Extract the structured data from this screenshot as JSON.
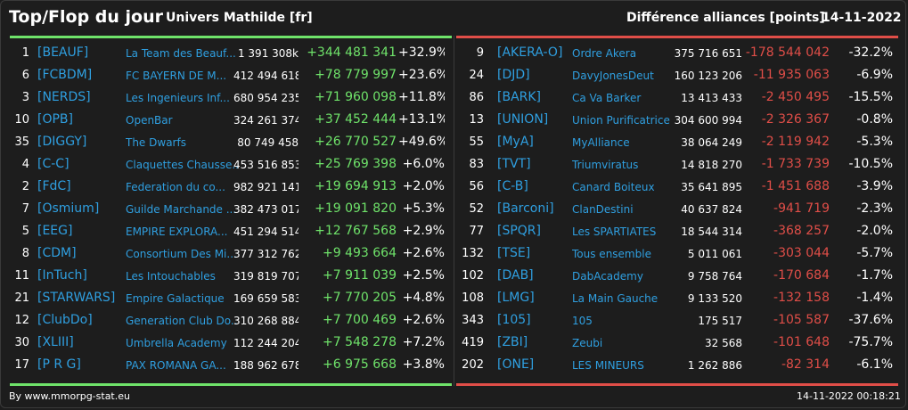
{
  "header": {
    "title": "Top/Flop du jour",
    "universe": "Univers Mathilde [fr]",
    "metric": "Différence alliances [points]",
    "date": "14-11-2022"
  },
  "colors": {
    "background": "#1d1d1d",
    "link": "#2f9fe0",
    "gain": "#6fe36a",
    "loss": "#e04e48"
  },
  "top": [
    {
      "rank": "1",
      "tag": "[BEAUF]",
      "name": "La Team des Beauf...",
      "points": "1 391 308k",
      "diff": "+344 481 341",
      "pct": "+32.9%"
    },
    {
      "rank": "6",
      "tag": "[FCBDM]",
      "name": "FC BAYERN DE M...",
      "points": "412 494 618",
      "diff": "+78 779 997",
      "pct": "+23.6%"
    },
    {
      "rank": "3",
      "tag": "[NERDS]",
      "name": "Les Ingenieurs Inf...",
      "points": "680 954 235",
      "diff": "+71 960 098",
      "pct": "+11.8%"
    },
    {
      "rank": "10",
      "tag": "[OPB]",
      "name": "OpenBar",
      "points": "324 261 374",
      "diff": "+37 452 444",
      "pct": "+13.1%"
    },
    {
      "rank": "35",
      "tag": "[DIGGY]",
      "name": "The Dwarfs",
      "points": "80 749 458",
      "diff": "+26 770 527",
      "pct": "+49.6%"
    },
    {
      "rank": "4",
      "tag": "[C-C]",
      "name": "Claquettes Chausse...",
      "points": "453 516 853",
      "diff": "+25 769 398",
      "pct": "+6.0%"
    },
    {
      "rank": "2",
      "tag": "[FdC]",
      "name": "Federation du co...",
      "points": "982 921 141",
      "diff": "+19 694 913",
      "pct": "+2.0%"
    },
    {
      "rank": "7",
      "tag": "[Osmium]",
      "name": "Guilde Marchande ...",
      "points": "382 473 017",
      "diff": "+19 091 820",
      "pct": "+5.3%"
    },
    {
      "rank": "5",
      "tag": "[EEG]",
      "name": "EMPIRE EXPLORA...",
      "points": "451 294 514",
      "diff": "+12 767 568",
      "pct": "+2.9%"
    },
    {
      "rank": "8",
      "tag": "[CDM]",
      "name": "Consortium Des Mi...",
      "points": "377 312 762",
      "diff": "+9 493 664",
      "pct": "+2.6%"
    },
    {
      "rank": "11",
      "tag": "[InTuch]",
      "name": "Les Intouchables",
      "points": "319 819 707",
      "diff": "+7 911 039",
      "pct": "+2.5%"
    },
    {
      "rank": "21",
      "tag": "[STARWARS]",
      "name": "Empire Galactique",
      "points": "169 659 583",
      "diff": "+7 770 205",
      "pct": "+4.8%"
    },
    {
      "rank": "12",
      "tag": "[ClubDo]",
      "name": "Generation Club Do...",
      "points": "310 268 884",
      "diff": "+7 700 469",
      "pct": "+2.6%"
    },
    {
      "rank": "30",
      "tag": "[XLIII]",
      "name": "Umbrella Academy",
      "points": "112 244 204",
      "diff": "+7 548 278",
      "pct": "+7.2%"
    },
    {
      "rank": "17",
      "tag": "[P R G]",
      "name": "PAX ROMANA GA...",
      "points": "188 962 678",
      "diff": "+6 975 668",
      "pct": "+3.8%"
    }
  ],
  "flop": [
    {
      "rank": "9",
      "tag": "[AKERA-O]",
      "name": "Ordre Akera",
      "points": "375 716 651",
      "diff": "-178 544 042",
      "pct": "-32.2%"
    },
    {
      "rank": "24",
      "tag": "[DJD]",
      "name": "DavyJonesDeut",
      "points": "160 123 206",
      "diff": "-11 935 063",
      "pct": "-6.9%"
    },
    {
      "rank": "86",
      "tag": "[BARK]",
      "name": "Ca Va Barker",
      "points": "13 413 433",
      "diff": "-2 450 495",
      "pct": "-15.5%"
    },
    {
      "rank": "13",
      "tag": "[UNION]",
      "name": "Union Purificatrice",
      "points": "304 600 994",
      "diff": "-2 326 367",
      "pct": "-0.8%"
    },
    {
      "rank": "55",
      "tag": "[MyA]",
      "name": "MyAlliance",
      "points": "38 064 249",
      "diff": "-2 119 942",
      "pct": "-5.3%"
    },
    {
      "rank": "83",
      "tag": "[TVT]",
      "name": "Triumviratus",
      "points": "14 818 270",
      "diff": "-1 733 739",
      "pct": "-10.5%"
    },
    {
      "rank": "56",
      "tag": "[C-B]",
      "name": "Canard Boiteux",
      "points": "35 641 895",
      "diff": "-1 451 688",
      "pct": "-3.9%"
    },
    {
      "rank": "52",
      "tag": "[Barconi]",
      "name": "ClanDestini",
      "points": "40 637 824",
      "diff": "-941 719",
      "pct": "-2.3%"
    },
    {
      "rank": "77",
      "tag": "[SPQR]",
      "name": "Les SPARTIATES",
      "points": "18 544 314",
      "diff": "-368 257",
      "pct": "-2.0%"
    },
    {
      "rank": "132",
      "tag": "[TSE]",
      "name": "Tous ensemble",
      "points": "5 011 061",
      "diff": "-303 044",
      "pct": "-5.7%"
    },
    {
      "rank": "102",
      "tag": "[DAB]",
      "name": "DabAcademy",
      "points": "9 758 764",
      "diff": "-170 684",
      "pct": "-1.7%"
    },
    {
      "rank": "108",
      "tag": "[LMG]",
      "name": "La Main Gauche",
      "points": "9 133 520",
      "diff": "-132 158",
      "pct": "-1.4%"
    },
    {
      "rank": "343",
      "tag": "[105]",
      "name": "105",
      "points": "175 517",
      "diff": "-105 587",
      "pct": "-37.6%"
    },
    {
      "rank": "419",
      "tag": "[ZBI]",
      "name": "Zeubi",
      "points": "32 568",
      "diff": "-101 648",
      "pct": "-75.7%"
    },
    {
      "rank": "202",
      "tag": "[ONE]",
      "name": "LES MINEURS",
      "points": "1 262 886",
      "diff": "-82 314",
      "pct": "-6.1%"
    }
  ],
  "footer": {
    "credit": "By www.mmorpg-stat.eu",
    "timestamp": "14-11-2022 00:18:21"
  }
}
